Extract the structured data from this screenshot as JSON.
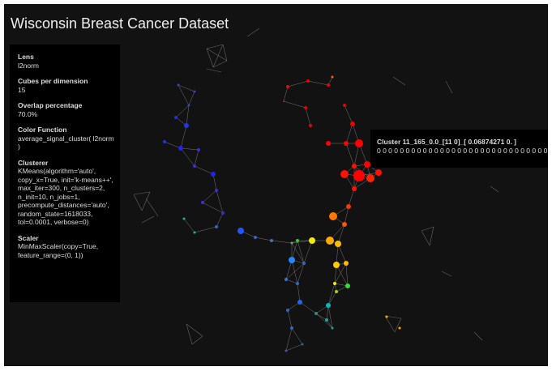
{
  "header": {
    "title": "Wisconsin Breast Cancer Dataset"
  },
  "panel": [
    {
      "label": "Lens",
      "value": "l2norm"
    },
    {
      "label": "Cubes per dimension",
      "value": "15"
    },
    {
      "label": "Overlap percentage",
      "value": "70.0%"
    },
    {
      "label": "Color Function",
      "value": "average_signal_cluster( l2norm )"
    },
    {
      "label": "Clusterer",
      "value": "KMeans(algorithm='auto', copy_x=True, init='k-means++', max_iter=300, n_clusters=2, n_init=10, n_jobs=1, precompute_distances='auto', random_state=1618033, tol=0.0001, verbose=0)"
    },
    {
      "label": "Scaler",
      "value": "MinMaxScaler(copy=True, feature_range=(0, 1))"
    }
  ],
  "tooltip": {
    "title": "Cluster 11_165_0.0_[11 0]_[ 0.06874271 0. ]",
    "body": "0 0 0 0 0 0 0 0 0 0 0 0 0 0 0 0 0 0 0 0 0 0 0 0 0 0 0 0 0 0"
  }
}
